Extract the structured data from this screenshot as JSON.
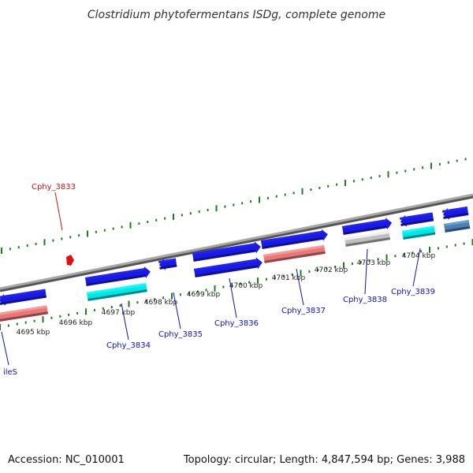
{
  "title": "Clostridium phytofermentans ISDg, complete genome",
  "footer": {
    "accession": "Accession: NC_010001",
    "summary": "Topology: circular; Length: 4,847,594 bp; Genes: 3,988"
  },
  "colors": {
    "backbone": "#808080",
    "tick_marks": "#1e7d1e",
    "cds_forward": "#1a1ae6",
    "cds_reverse": "#1a1ae6",
    "rna": "#e87878",
    "cyan": "#00e5e5",
    "sky": "#2aa7e8",
    "gray": "#c0c0c0",
    "steel": "#4d7fb0",
    "label_highlight": "#d01010",
    "label_normal": "#1010c0"
  },
  "scale_labels": [
    "4695 kbp",
    "4696 kbp",
    "4697 kbp",
    "4698 kbp",
    "4699 kbp",
    "4700 kbp",
    "4701 kbp",
    "4702 kbp",
    "4703 kbp",
    "4704 kbp"
  ],
  "gene_labels": [
    {
      "text": "Cphy_3833",
      "highlight": true
    },
    {
      "text": "Cphy_3834",
      "highlight": false
    },
    {
      "text": "Cphy_3835",
      "highlight": false
    },
    {
      "text": "Cphy_3836",
      "highlight": false
    },
    {
      "text": "Cphy_3837",
      "highlight": false
    },
    {
      "text": "Cphy_3838",
      "highlight": false
    },
    {
      "text": "Cphy_3839",
      "highlight": false
    },
    {
      "text": "ileS",
      "highlight": false
    }
  ]
}
